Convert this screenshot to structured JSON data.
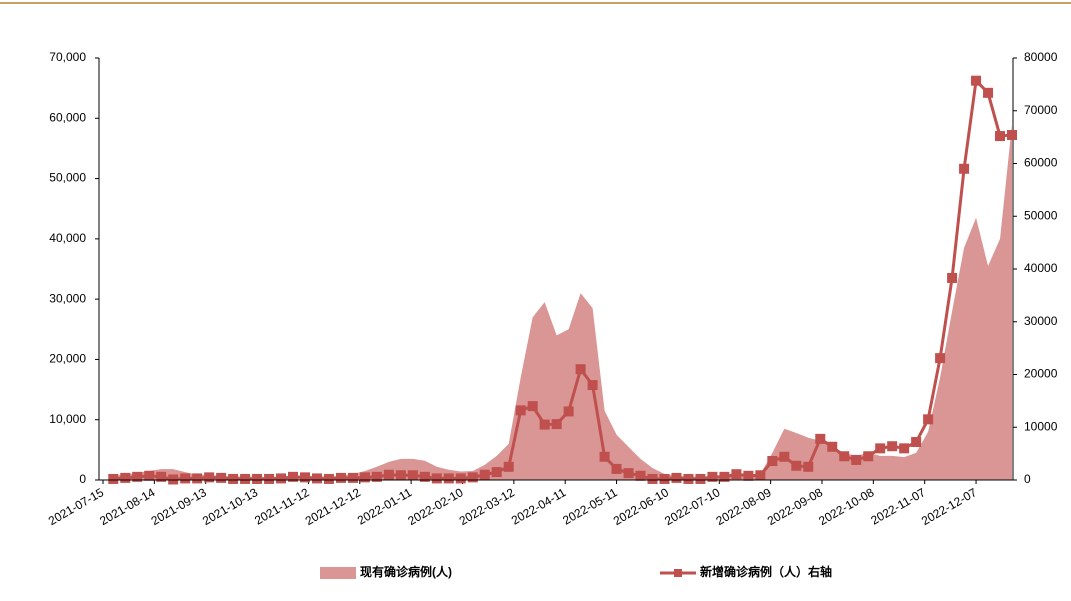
{
  "chart_data": {
    "type": "area_line",
    "x": [
      "2021-07-21",
      "2021-07-28",
      "2021-08-04",
      "2021-08-11",
      "2021-08-18",
      "2021-08-25",
      "2021-09-01",
      "2021-09-08",
      "2021-09-15",
      "2021-09-22",
      "2021-09-29",
      "2021-10-06",
      "2021-10-13",
      "2021-10-20",
      "2021-10-27",
      "2021-11-03",
      "2021-11-10",
      "2021-11-17",
      "2021-11-24",
      "2021-12-01",
      "2021-12-08",
      "2021-12-15",
      "2021-12-22",
      "2021-12-29",
      "2022-01-05",
      "2022-01-12",
      "2022-01-19",
      "2022-01-26",
      "2022-02-02",
      "2022-02-09",
      "2022-02-16",
      "2022-02-23",
      "2022-03-02",
      "2022-03-09",
      "2022-03-16",
      "2022-03-23",
      "2022-03-30",
      "2022-04-06",
      "2022-04-13",
      "2022-04-20",
      "2022-04-27",
      "2022-05-04",
      "2022-05-11",
      "2022-05-18",
      "2022-05-25",
      "2022-06-01",
      "2022-06-08",
      "2022-06-15",
      "2022-06-22",
      "2022-06-29",
      "2022-07-06",
      "2022-07-13",
      "2022-07-20",
      "2022-07-27",
      "2022-08-03",
      "2022-08-10",
      "2022-08-17",
      "2022-08-24",
      "2022-08-31",
      "2022-09-07",
      "2022-09-14",
      "2022-09-21",
      "2022-09-28",
      "2022-10-05",
      "2022-10-12",
      "2022-10-19",
      "2022-10-26",
      "2022-11-02",
      "2022-11-09",
      "2022-11-16",
      "2022-11-23",
      "2022-11-30",
      "2022-12-07",
      "2022-12-14",
      "2022-12-21",
      "2022-12-28"
    ],
    "xticks": [
      "2021-07-15",
      "2021-08-14",
      "2021-09-13",
      "2021-10-13",
      "2021-11-12",
      "2021-12-12",
      "2022-01-11",
      "2022-02-10",
      "2022-03-12",
      "2022-04-11",
      "2022-05-11",
      "2022-06-10",
      "2022-07-10",
      "2022-08-09",
      "2022-09-08",
      "2022-10-08",
      "2022-11-07",
      "2022-12-07"
    ],
    "series": [
      {
        "name": "现有确诊病例(人)",
        "kind": "area",
        "axis": "y",
        "color": "#d99694",
        "values": [
          700,
          900,
          1200,
          1500,
          1800,
          1800,
          1300,
          900,
          800,
          700,
          600,
          600,
          500,
          500,
          600,
          600,
          700,
          600,
          600,
          700,
          1000,
          1500,
          2200,
          3000,
          3500,
          3500,
          3200,
          2200,
          1700,
          1400,
          1500,
          2500,
          4000,
          6000,
          17000,
          27000,
          29500,
          24000,
          25000,
          31000,
          28500,
          11500,
          7500,
          5500,
          3500,
          2000,
          1000,
          700,
          600,
          500,
          500,
          500,
          600,
          700,
          1000,
          4500,
          8500,
          7800,
          7000,
          6500,
          5500,
          4500,
          4000,
          4500,
          4000,
          4000,
          3800,
          4500,
          8000,
          17000,
          28000,
          38500,
          43500,
          35500,
          40000,
          59000
        ]
      },
      {
        "name": "新增确诊病例（人）右轴",
        "kind": "line",
        "axis": "y2",
        "color": "#c0504d",
        "values": [
          200,
          400,
          600,
          800,
          600,
          100,
          300,
          300,
          500,
          400,
          200,
          200,
          200,
          200,
          300,
          600,
          500,
          300,
          200,
          400,
          400,
          500,
          600,
          1000,
          900,
          900,
          600,
          300,
          300,
          300,
          500,
          1000,
          1500,
          2500,
          13200,
          14000,
          10500,
          10600,
          13000,
          21000,
          18000,
          4400,
          2100,
          1300,
          800,
          200,
          200,
          400,
          200,
          200,
          600,
          600,
          1100,
          800,
          900,
          3600,
          4400,
          2700,
          2500,
          7800,
          6300,
          4500,
          3800,
          4500,
          6000,
          6400,
          6000,
          7200,
          11500,
          23100,
          38300,
          59000,
          75700,
          73400,
          65200,
          65400
        ]
      }
    ],
    "ylim": [
      0,
      70000
    ],
    "yticks": [
      0,
      {
        "value": 10000,
        "label": "10,000"
      },
      {
        "value": 20000,
        "label": "20,000"
      },
      {
        "value": 30000,
        "label": "30,000"
      },
      {
        "value": 40000,
        "label": "40,000"
      },
      {
        "value": 50000,
        "label": "50,000"
      },
      {
        "value": 60000,
        "label": "60,000"
      },
      {
        "value": 70000,
        "label": "70,000"
      }
    ],
    "y2lim": [
      0,
      80000
    ],
    "y2ticks": [
      0,
      10000,
      20000,
      30000,
      40000,
      50000,
      60000,
      70000,
      80000
    ]
  }
}
